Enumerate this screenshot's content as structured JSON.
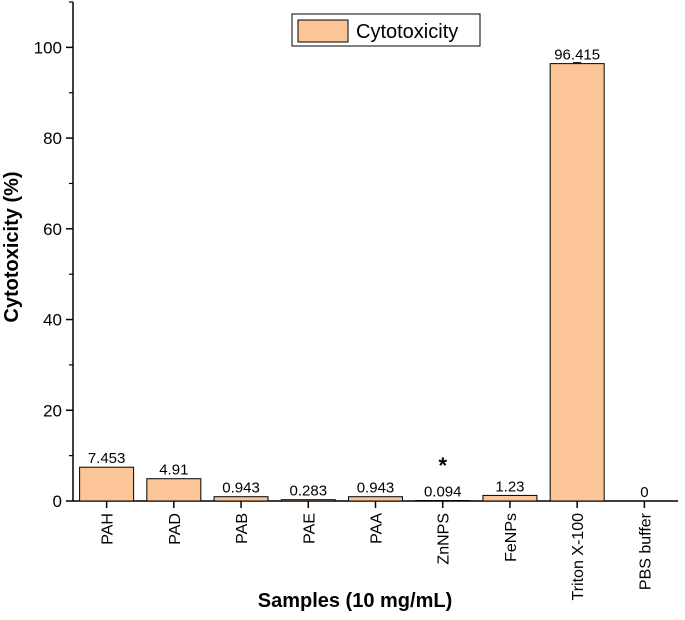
{
  "chart_data": {
    "type": "bar",
    "title": "",
    "xlabel": "Samples (10 mg/mL)",
    "ylabel": "Cytotoxicity (%)",
    "ylim": [
      0,
      110
    ],
    "yticks": [
      0,
      20,
      40,
      60,
      80,
      100
    ],
    "categories": [
      "PAH",
      "PAD",
      "PAB",
      "PAE",
      "PAA",
      "ZnNPS",
      "FeNPs",
      "Triton X-100",
      "PBS buffer"
    ],
    "series": [
      {
        "name": "Cytotoxicity",
        "values": [
          7.453,
          4.91,
          0.943,
          0.283,
          0.943,
          0.094,
          1.23,
          96.415,
          0
        ],
        "labels": [
          "7.453",
          "4.91",
          "0.943",
          "0.283",
          "0.943",
          "0.094",
          "1.23",
          "96.415",
          "0"
        ],
        "color": "#FBC597"
      }
    ],
    "annotations": [
      {
        "category": "ZnNPS",
        "text": "*"
      }
    ],
    "legend": "top-center",
    "grid": false
  }
}
